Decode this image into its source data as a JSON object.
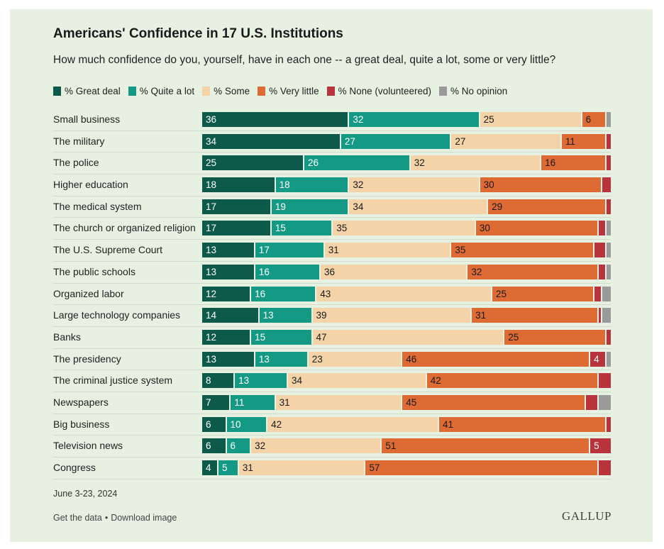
{
  "source_tag": "Gallup",
  "title": "Americans' Confidence in 17 U.S. Institutions",
  "subtitle": "How much confidence do you, yourself, have in each one -- a great deal, quite a lot, some or very little?",
  "date": "June 3-23, 2024",
  "footer": {
    "get_data": "Get the data",
    "separator": "•",
    "download": "Download image"
  },
  "logo": "GALLUP",
  "chart_data": {
    "type": "bar",
    "orientation": "horizontal",
    "stacked": true,
    "categories": [
      "Small business",
      "The military",
      "The police",
      "Higher education",
      "The medical system",
      "The church or organized religion",
      "The U.S. Supreme Court",
      "The public schools",
      "Organized labor",
      "Large technology companies",
      "Banks",
      "The presidency",
      "The criminal justice system",
      "Newspapers",
      "Big business",
      "Television news",
      "Congress"
    ],
    "series": [
      {
        "name": "% Great deal",
        "color": "#0d5a4b",
        "label_color": "#ffffff",
        "values": [
          36,
          34,
          25,
          18,
          17,
          17,
          13,
          13,
          12,
          14,
          12,
          13,
          8,
          7,
          6,
          6,
          4
        ],
        "labels": [
          "36",
          "34",
          "25",
          "18",
          "17",
          "17",
          "13",
          "13",
          "12",
          "14",
          "12",
          "13",
          "8",
          "7",
          "6",
          "6",
          "4"
        ]
      },
      {
        "name": "% Quite a lot",
        "color": "#149a84",
        "label_color": "#ffffff",
        "values": [
          32,
          27,
          26,
          18,
          19,
          15,
          17,
          16,
          16,
          13,
          15,
          13,
          13,
          11,
          10,
          6,
          5
        ],
        "labels": [
          "32",
          "27",
          "26",
          "18",
          "19",
          "15",
          "17",
          "16",
          "16",
          "13",
          "15",
          "13",
          "13",
          "11",
          "10",
          "6",
          "5"
        ]
      },
      {
        "name": "% Some",
        "color": "#f5d3a9",
        "label_color": "#1a1a1a",
        "values": [
          25,
          27,
          32,
          32,
          34,
          35,
          31,
          36,
          43,
          39,
          47,
          23,
          34,
          31,
          42,
          32,
          31
        ],
        "labels": [
          "25",
          "27",
          "32",
          "32",
          "34",
          "35",
          "31",
          "36",
          "43",
          "39",
          "47",
          "23",
          "34",
          "31",
          "42",
          "32",
          "31"
        ]
      },
      {
        "name": "% Very little",
        "color": "#de6a34",
        "label_color": "#1a1a1a",
        "values": [
          6,
          11,
          16,
          30,
          29,
          30,
          35,
          32,
          25,
          31,
          25,
          46,
          42,
          45,
          41,
          51,
          57
        ],
        "labels": [
          "6",
          "11",
          "16",
          "30",
          "29",
          "30",
          "35",
          "32",
          "25",
          "31",
          "25",
          "46",
          "42",
          "45",
          "41",
          "51",
          "57"
        ]
      },
      {
        "name": "% None (volunteered)",
        "color": "#b8333b",
        "label_color": "#ffffff",
        "values": [
          0,
          1,
          1,
          2,
          1,
          2,
          3,
          2,
          2,
          1,
          1,
          4,
          3,
          3,
          1,
          5,
          3
        ],
        "labels": [
          "",
          "",
          "",
          "",
          "",
          "",
          "",
          "",
          "",
          "",
          "",
          "4",
          "",
          "",
          "",
          "5",
          ""
        ]
      },
      {
        "name": "% No opinion",
        "color": "#9a9a9a",
        "label_color": "#ffffff",
        "values": [
          1,
          0,
          0,
          0,
          0,
          1,
          1,
          1,
          2,
          2,
          0,
          1,
          0,
          3,
          0,
          0,
          0
        ],
        "labels": [
          "",
          "",
          "",
          "",
          "",
          "",
          "",
          "",
          "",
          "",
          "",
          "",
          "",
          "",
          "",
          "",
          ""
        ]
      }
    ],
    "legend_position": "top",
    "xlim": [
      0,
      100
    ],
    "grid": false
  }
}
